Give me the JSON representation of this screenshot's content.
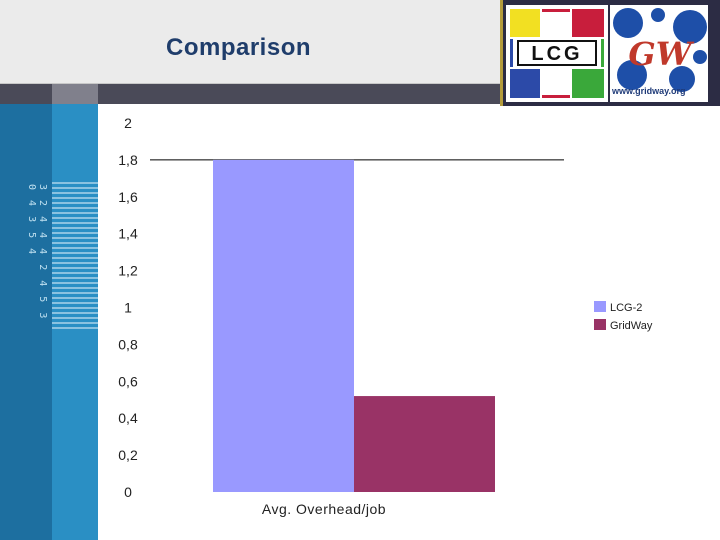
{
  "slide": {
    "title": "Comparison"
  },
  "logos": {
    "lcg_text": "LCG",
    "gridway_text": "GW",
    "gridway_url": "www.gridway.org"
  },
  "side_digits": "3 2 4 4 4 2 4 5 3 0 4 3 5 4",
  "colors": {
    "lcg2": "#9999ff",
    "gridway": "#993366",
    "title": "#1f3d6b"
  },
  "chart_data": {
    "type": "bar",
    "categories": [
      "Avg. Overhead/job"
    ],
    "series": [
      {
        "name": "LCG-2",
        "values": [
          1.8
        ],
        "color": "#9999ff"
      },
      {
        "name": "GridWay",
        "values": [
          0.52
        ],
        "color": "#993366"
      }
    ],
    "yticks": [
      "0",
      "0,2",
      "0,4",
      "0,6",
      "0,8",
      "1",
      "1,2",
      "1,4",
      "1,6",
      "1,8",
      "2"
    ],
    "ylim": [
      0,
      2
    ],
    "reference_line": 1.8,
    "legend_position": "right",
    "grid": false
  }
}
